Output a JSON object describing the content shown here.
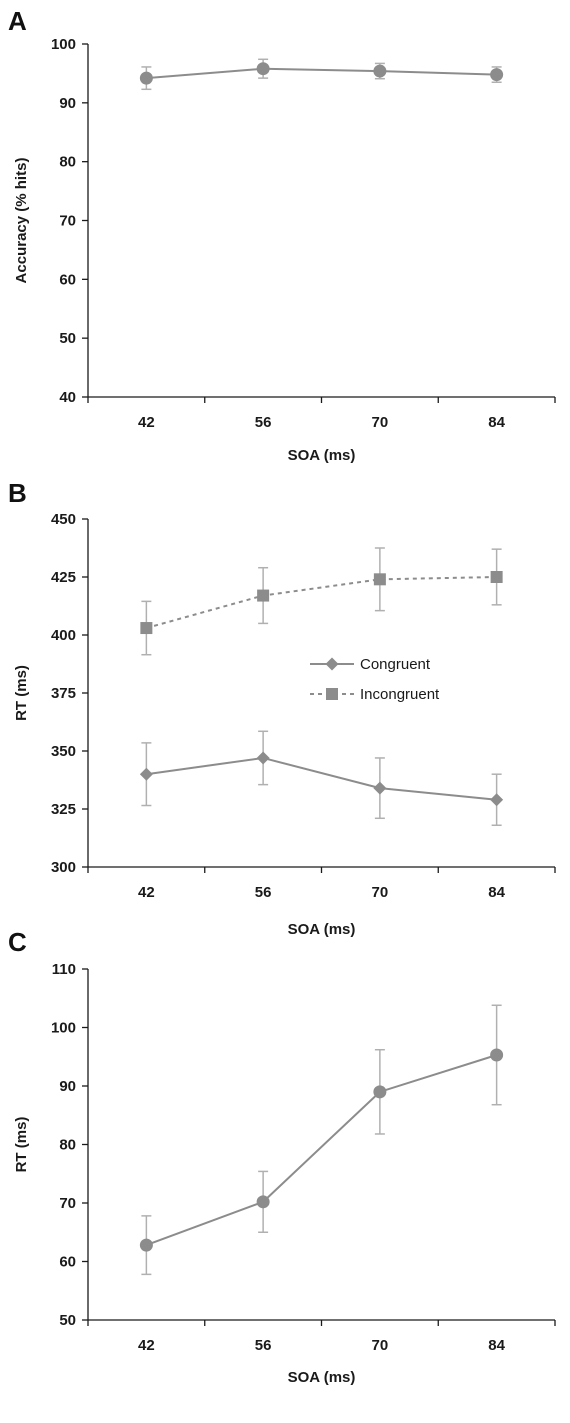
{
  "chart_data": [
    {
      "panel": "A",
      "type": "line",
      "categories": [
        "42",
        "56",
        "70",
        "84"
      ],
      "xlabel": "SOA (ms)",
      "ylabel": "Accuracy (% hits)",
      "ylim": [
        40,
        100
      ],
      "yticks": [
        40,
        50,
        60,
        70,
        80,
        90,
        100
      ],
      "grid": false,
      "series": [
        {
          "name": "",
          "values": [
            94.2,
            95.8,
            95.4,
            94.8
          ],
          "errors": [
            1.9,
            1.6,
            1.3,
            1.3
          ],
          "marker": "circle",
          "dash": "solid",
          "color": "#8c8c8c"
        }
      ]
    },
    {
      "panel": "B",
      "type": "line",
      "categories": [
        "42",
        "56",
        "70",
        "84"
      ],
      "xlabel": "SOA (ms)",
      "ylabel": "RT (ms)",
      "ylim": [
        300,
        450
      ],
      "yticks": [
        300,
        325,
        350,
        375,
        400,
        425,
        450
      ],
      "grid": false,
      "legend": "center-right",
      "series": [
        {
          "name": "Congruent",
          "values": [
            340,
            347,
            334,
            329
          ],
          "errors": [
            13.5,
            11.5,
            13.0,
            11.0
          ],
          "marker": "diamond",
          "dash": "solid",
          "color": "#8c8c8c"
        },
        {
          "name": "Incongruent",
          "values": [
            403,
            417,
            424,
            425
          ],
          "errors": [
            11.5,
            12.0,
            13.5,
            12.0
          ],
          "marker": "square",
          "dash": "dashed",
          "color": "#8c8c8c"
        }
      ]
    },
    {
      "panel": "C",
      "type": "line",
      "categories": [
        "42",
        "56",
        "70",
        "84"
      ],
      "xlabel": "SOA (ms)",
      "ylabel": "RT (ms)",
      "ylim": [
        50,
        110
      ],
      "yticks": [
        50,
        60,
        70,
        80,
        90,
        100,
        110
      ],
      "grid": false,
      "series": [
        {
          "name": "",
          "values": [
            62.8,
            70.2,
            89.0,
            95.3
          ],
          "errors": [
            5.0,
            5.2,
            7.2,
            8.5
          ],
          "marker": "circle",
          "dash": "solid",
          "color": "#8c8c8c"
        }
      ]
    }
  ]
}
